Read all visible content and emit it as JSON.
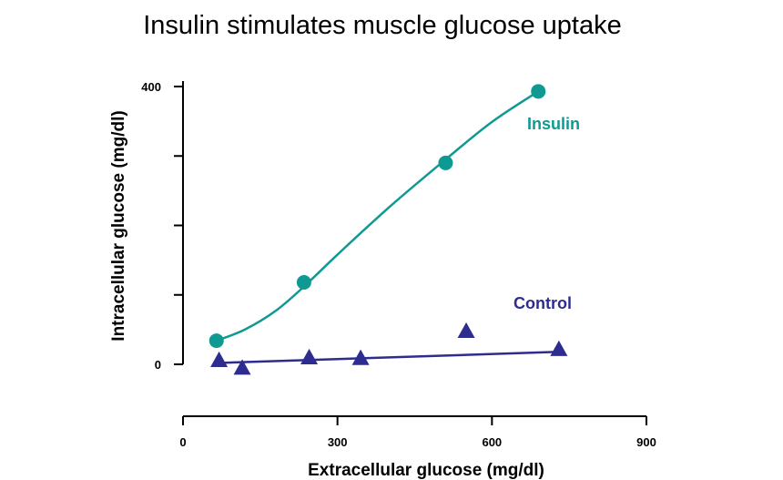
{
  "chart_data": {
    "type": "scatter",
    "title": "Insulin stimulates muscle glucose uptake",
    "xlabel": "Extracellular glucose (mg/dl)",
    "ylabel": "Intracellular glucose (mg/dl)",
    "xlim": [
      0,
      900
    ],
    "ylim": [
      0,
      400
    ],
    "x_ticks": [
      0,
      300,
      600,
      900
    ],
    "x_tick_labels": [
      "0",
      "300",
      "600",
      "900"
    ],
    "y_ticks": [
      0,
      100,
      200,
      300,
      400
    ],
    "y_tick_labels": [
      "0",
      "",
      "",
      "",
      "400"
    ],
    "grid": false,
    "series": [
      {
        "name": "Insulin",
        "color": "#0e9a93",
        "marker": "circle",
        "points": [
          {
            "x": 65,
            "y": 34
          },
          {
            "x": 235,
            "y": 118
          },
          {
            "x": 510,
            "y": 290
          },
          {
            "x": 690,
            "y": 393
          }
        ],
        "fit_curve": [
          {
            "x": 65,
            "y": 34
          },
          {
            "x": 120,
            "y": 50
          },
          {
            "x": 180,
            "y": 77
          },
          {
            "x": 235,
            "y": 112
          },
          {
            "x": 300,
            "y": 158
          },
          {
            "x": 400,
            "y": 226
          },
          {
            "x": 510,
            "y": 295
          },
          {
            "x": 600,
            "y": 349
          },
          {
            "x": 690,
            "y": 393
          }
        ]
      },
      {
        "name": "Control",
        "color": "#2e2d8f",
        "marker": "triangle",
        "points": [
          {
            "x": 70,
            "y": 6
          },
          {
            "x": 115,
            "y": -5
          },
          {
            "x": 245,
            "y": 10
          },
          {
            "x": 345,
            "y": 9
          },
          {
            "x": 550,
            "y": 48
          },
          {
            "x": 730,
            "y": 22
          }
        ],
        "fit_line": [
          {
            "x": 70,
            "y": 2
          },
          {
            "x": 730,
            "y": 18
          }
        ]
      }
    ]
  }
}
